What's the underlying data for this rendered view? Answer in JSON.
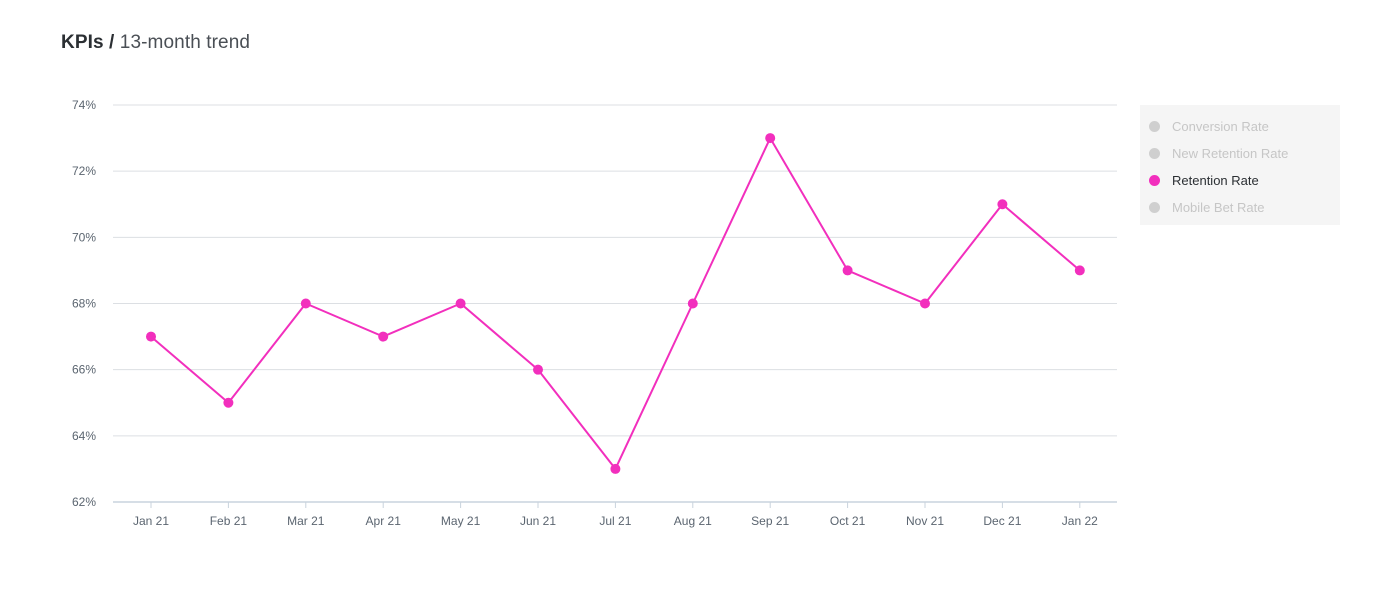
{
  "header": {
    "title_strong": "KPIs /",
    "title_light": "13-month trend"
  },
  "colors": {
    "series": "#f22fbd",
    "inactive_legend_dot": "#cfcfcf",
    "inactive_legend_text": "#c6c6c6",
    "active_legend_text": "#2b2f33",
    "grid": "#dcdfe3",
    "axis": "#c9d3dd"
  },
  "legend": {
    "items": [
      {
        "label": "Conversion Rate",
        "active": false
      },
      {
        "label": "New Retention Rate",
        "active": false
      },
      {
        "label": "Retention Rate",
        "active": true
      },
      {
        "label": "Mobile Bet Rate",
        "active": false
      }
    ]
  },
  "chart_data": {
    "type": "line",
    "title": "",
    "xlabel": "",
    "ylabel": "",
    "categories": [
      "Jan 21",
      "Feb 21",
      "Mar 21",
      "Apr 21",
      "May 21",
      "Jun 21",
      "Jul 21",
      "Aug 21",
      "Sep 21",
      "Oct 21",
      "Nov 21",
      "Dec 21",
      "Jan 22"
    ],
    "series": [
      {
        "name": "Retention Rate",
        "values": [
          67,
          65,
          68,
          67,
          68,
          66,
          63,
          68,
          73,
          69,
          68,
          71,
          69
        ]
      }
    ],
    "ylim": [
      62,
      74
    ],
    "yticks": [
      62,
      64,
      66,
      68,
      70,
      72,
      74
    ],
    "ytick_labels": [
      "62%",
      "64%",
      "66%",
      "68%",
      "70%",
      "72%",
      "74%"
    ],
    "grid": true,
    "legend_position": "right"
  }
}
